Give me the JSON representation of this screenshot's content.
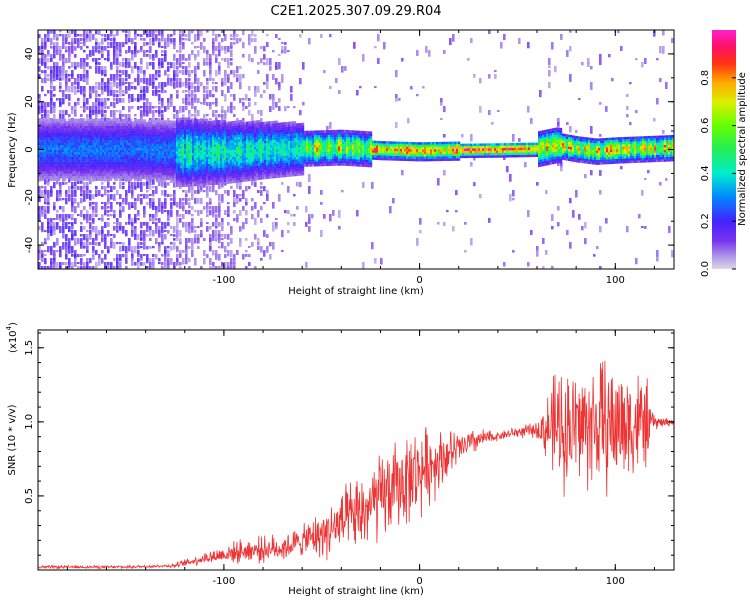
{
  "title": "C2E1.2025.307.09.29.R04",
  "colors": {
    "snr_line": "#ee3333",
    "ridge_core": "#ff2244",
    "axis": "#000000"
  },
  "colorbar": {
    "label": "Normalized spectral amplitude",
    "ticks": [
      "0.0",
      "0.2",
      "0.4",
      "0.6",
      "0.8"
    ],
    "tick_values": [
      0.0,
      0.2,
      0.4,
      0.6,
      0.8
    ]
  },
  "chart_data": [
    {
      "type": "heatmap",
      "name": "spectrogram",
      "xlabel": "Height of straight line (km)",
      "ylabel": "Frequency (Hz)",
      "xlim": [
        -195,
        130
      ],
      "ylim": [
        -50,
        50
      ],
      "x_ticks": [
        -100,
        0,
        100
      ],
      "x_tick_labels": [
        "-100",
        "0",
        "100"
      ],
      "y_ticks": [
        -40,
        -20,
        0,
        20,
        40
      ],
      "y_tick_labels": [
        "-40",
        "-20",
        "0",
        "20",
        "40"
      ],
      "colorbar_range": [
        0,
        1
      ],
      "ridge_center": [
        {
          "x": -190,
          "f": 0.0
        },
        {
          "x": -150,
          "f": 0.0
        },
        {
          "x": -120,
          "f": -1.0
        },
        {
          "x": -100,
          "f": -1.0
        },
        {
          "x": -80,
          "f": 0.0
        },
        {
          "x": -60,
          "f": 0.5
        },
        {
          "x": -40,
          "f": 1.0
        },
        {
          "x": -20,
          "f": 0.0
        },
        {
          "x": 0,
          "f": -0.5
        },
        {
          "x": 20,
          "f": -0.2
        },
        {
          "x": 40,
          "f": 0.0
        },
        {
          "x": 60,
          "f": 0.3
        },
        {
          "x": 70,
          "f": 2.0
        },
        {
          "x": 80,
          "f": 0.5
        },
        {
          "x": 90,
          "f": -0.5
        },
        {
          "x": 100,
          "f": 0.0
        },
        {
          "x": 115,
          "f": 0.5
        },
        {
          "x": 130,
          "f": 1.0
        }
      ]
    },
    {
      "type": "line",
      "name": "snr",
      "xlabel": "Height of straight line (km)",
      "ylabel": "SNR (10 * v/v)",
      "y_multiplier": "(x10",
      "y_multiplier_exp": "4",
      "y_multiplier_close": ")",
      "xlim": [
        -195,
        130
      ],
      "ylim": [
        0,
        1.62
      ],
      "x_ticks": [
        -100,
        0,
        100
      ],
      "x_tick_labels": [
        "-100",
        "0",
        "100"
      ],
      "y_ticks": [
        0.5,
        1.0,
        1.5
      ],
      "y_tick_labels": [
        "0.5",
        "1.0",
        "1.5"
      ],
      "trend": [
        {
          "x": -195,
          "y": 0.02
        },
        {
          "x": -150,
          "y": 0.02
        },
        {
          "x": -125,
          "y": 0.03
        },
        {
          "x": -110,
          "y": 0.08
        },
        {
          "x": -90,
          "y": 0.13
        },
        {
          "x": -70,
          "y": 0.15
        },
        {
          "x": -50,
          "y": 0.24
        },
        {
          "x": -30,
          "y": 0.38
        },
        {
          "x": -10,
          "y": 0.58
        },
        {
          "x": 10,
          "y": 0.75
        },
        {
          "x": 30,
          "y": 0.88
        },
        {
          "x": 50,
          "y": 0.93
        },
        {
          "x": 70,
          "y": 0.96
        },
        {
          "x": 90,
          "y": 0.98
        },
        {
          "x": 110,
          "y": 0.99
        },
        {
          "x": 130,
          "y": 1.0
        }
      ],
      "amplitude": [
        {
          "x": -195,
          "a": 0.01
        },
        {
          "x": -130,
          "a": 0.01
        },
        {
          "x": -110,
          "a": 0.04
        },
        {
          "x": -90,
          "a": 0.08
        },
        {
          "x": -60,
          "a": 0.1
        },
        {
          "x": -40,
          "a": 0.22
        },
        {
          "x": -20,
          "a": 0.3
        },
        {
          "x": 0,
          "a": 0.3
        },
        {
          "x": 20,
          "a": 0.12
        },
        {
          "x": 40,
          "a": 0.03
        },
        {
          "x": 60,
          "a": 0.05
        },
        {
          "x": 70,
          "a": 0.4
        },
        {
          "x": 95,
          "a": 0.45
        },
        {
          "x": 115,
          "a": 0.35
        },
        {
          "x": 120,
          "a": 0.05
        },
        {
          "x": 130,
          "a": 0.02
        }
      ]
    }
  ]
}
